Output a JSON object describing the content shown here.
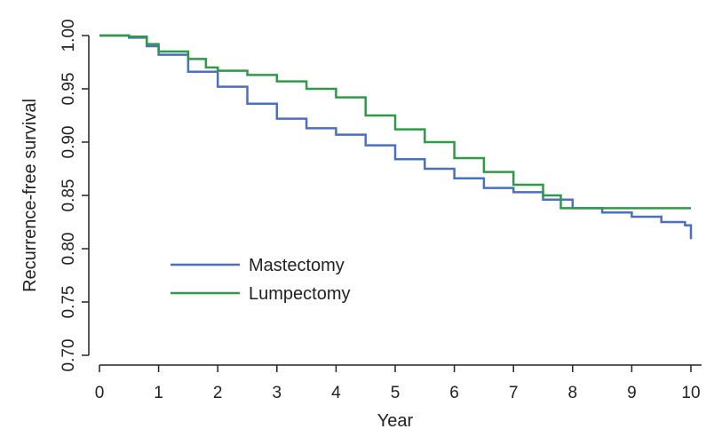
{
  "chart_data": {
    "type": "line",
    "step": true,
    "xlabel": "Year",
    "ylabel": "Recurrence-free survival",
    "xlim": [
      0,
      10
    ],
    "ylim": [
      0.7,
      1.0
    ],
    "x_ticks": [
      "0",
      "1",
      "2",
      "3",
      "4",
      "5",
      "6",
      "7",
      "8",
      "9",
      "10"
    ],
    "y_ticks": [
      "0.70",
      "0.75",
      "0.80",
      "0.85",
      "0.90",
      "0.95",
      "1.00"
    ],
    "grid": false,
    "legend_position": "lower-left",
    "series": [
      {
        "name": "Mastectomy",
        "color": "#4a6fc4",
        "x": [
          0,
          0.5,
          0.8,
          1.0,
          1.5,
          2.0,
          2.5,
          3.0,
          3.5,
          4.0,
          4.5,
          5.0,
          5.5,
          6.0,
          6.5,
          7.0,
          7.5,
          8.0,
          8.5,
          9.0,
          9.5,
          9.9,
          10.0
        ],
        "y": [
          1.0,
          0.998,
          0.99,
          0.982,
          0.966,
          0.952,
          0.936,
          0.922,
          0.913,
          0.907,
          0.897,
          0.884,
          0.875,
          0.866,
          0.857,
          0.853,
          0.846,
          0.838,
          0.834,
          0.83,
          0.825,
          0.822,
          0.809
        ]
      },
      {
        "name": "Lumpectomy",
        "color": "#2e9a48",
        "x": [
          0,
          0.5,
          0.8,
          1.0,
          1.5,
          1.8,
          2.0,
          2.5,
          3.0,
          3.5,
          4.0,
          4.5,
          5.0,
          5.5,
          6.0,
          6.5,
          7.0,
          7.5,
          7.8,
          8.0,
          9.0,
          10.0
        ],
        "y": [
          1.0,
          0.999,
          0.992,
          0.985,
          0.978,
          0.97,
          0.967,
          0.963,
          0.957,
          0.95,
          0.942,
          0.925,
          0.912,
          0.9,
          0.885,
          0.872,
          0.86,
          0.85,
          0.838,
          0.838,
          0.838,
          0.838
        ]
      }
    ]
  }
}
